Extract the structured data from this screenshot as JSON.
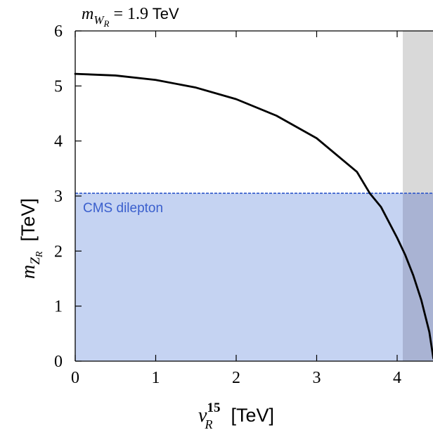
{
  "chart_data": {
    "type": "line",
    "title": {
      "var": "m",
      "sub": "W",
      "subsub": "R",
      "eq": " = 1.9",
      "unit": " TeV"
    },
    "xlabel": {
      "var": "v",
      "sup": "15",
      "sub": "R",
      "unit": "[TeV]"
    },
    "ylabel": {
      "var": "m",
      "sub": "Z",
      "subsub": "R",
      "unit": "[TeV]"
    },
    "xlim": [
      0,
      4.45
    ],
    "ylim": [
      0,
      6
    ],
    "xticks": [
      "0",
      "1",
      "2",
      "3",
      "4"
    ],
    "yticks": [
      "0",
      "1",
      "2",
      "3",
      "4",
      "5",
      "6"
    ],
    "grid": false,
    "series": [
      {
        "x": [
          0,
          0.5,
          1.0,
          1.5,
          2.0,
          2.5,
          3.0,
          3.5,
          3.66,
          3.8,
          4.0,
          4.1,
          4.2,
          4.3,
          4.4,
          4.45
        ],
        "y": [
          5.22,
          5.19,
          5.11,
          4.97,
          4.76,
          4.46,
          4.05,
          3.44,
          3.05,
          2.8,
          2.24,
          1.93,
          1.56,
          1.11,
          0.53,
          0.05
        ],
        "color": "#000000"
      }
    ],
    "regions": [
      {
        "label": "CMS dilepton",
        "type": "horizontal-band",
        "y_from": 0,
        "y_to": 3.05,
        "fill": "#c5d3f2",
        "line_color": "#2d57c9",
        "text_color": "#3a5fcd"
      },
      {
        "label": "",
        "type": "vertical-band",
        "x_from": 4.07,
        "x_to": 4.45,
        "fill": "#d9d9d9",
        "overlap_fill": "#a9b3d3"
      }
    ]
  }
}
